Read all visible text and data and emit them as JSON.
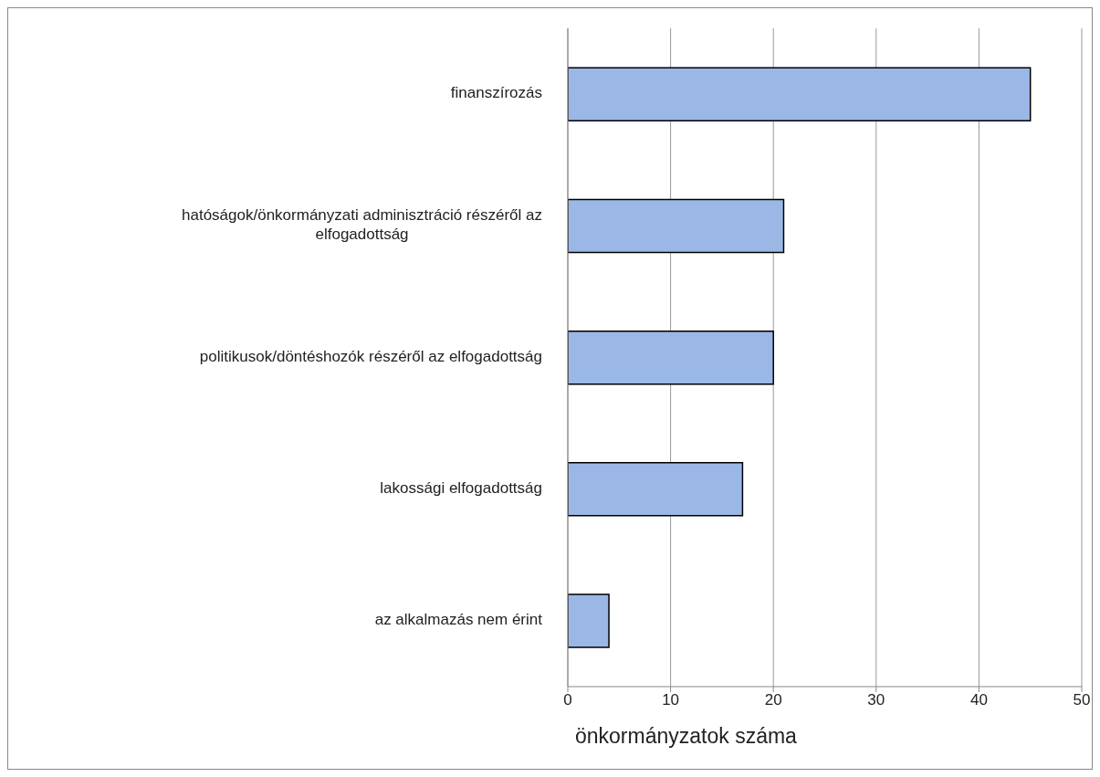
{
  "chart_data": {
    "type": "bar",
    "orientation": "horizontal",
    "xlabel": "önkormányzatok száma",
    "categories": [
      "finanszírozás",
      "hatóságok/önkormányzati adminisztráció részéről az elfogadottság",
      "politikusok/döntéshozók részéről az elfogadottság",
      "lakossági elfogadottság",
      "az alkalmazás nem érint"
    ],
    "values": [
      45,
      21,
      20,
      17,
      4
    ],
    "color": "#9bb7e6",
    "xlim": [
      0,
      50
    ],
    "xticks": [
      0,
      10,
      20,
      30,
      40,
      50
    ],
    "grid": "x"
  }
}
